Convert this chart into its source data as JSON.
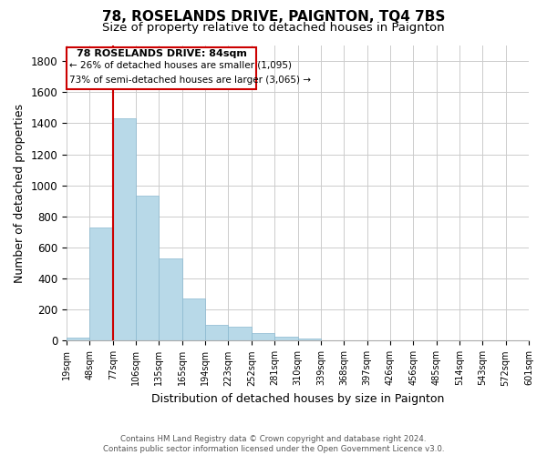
{
  "title": "78, ROSELANDS DRIVE, PAIGNTON, TQ4 7BS",
  "subtitle": "Size of property relative to detached houses in Paignton",
  "xlabel": "Distribution of detached houses by size in Paignton",
  "ylabel": "Number of detached properties",
  "bar_values": [
    20,
    730,
    1430,
    935,
    530,
    270,
    100,
    90,
    50,
    25,
    15,
    5,
    2,
    1,
    0,
    0,
    0,
    0,
    0,
    0
  ],
  "categories": [
    "19sqm",
    "48sqm",
    "77sqm",
    "106sqm",
    "135sqm",
    "165sqm",
    "194sqm",
    "223sqm",
    "252sqm",
    "281sqm",
    "310sqm",
    "339sqm",
    "368sqm",
    "397sqm",
    "426sqm",
    "456sqm",
    "485sqm",
    "514sqm",
    "543sqm",
    "572sqm",
    "601sqm"
  ],
  "bar_color": "#b8d9e8",
  "bar_edge_color": "#8ab8d0",
  "grid_color": "#cccccc",
  "marker_color": "#cc0000",
  "annotation_title": "78 ROSELANDS DRIVE: 84sqm",
  "annotation_line1": "← 26% of detached houses are smaller (1,095)",
  "annotation_line2": "73% of semi-detached houses are larger (3,065) →",
  "box_color": "#ffffff",
  "box_edge_color": "#cc0000",
  "ylim": [
    0,
    1900
  ],
  "yticks": [
    0,
    200,
    400,
    600,
    800,
    1000,
    1200,
    1400,
    1600,
    1800
  ],
  "footer_line1": "Contains HM Land Registry data © Crown copyright and database right 2024.",
  "footer_line2": "Contains public sector information licensed under the Open Government Licence v3.0.",
  "background_color": "#ffffff",
  "title_fontsize": 11,
  "subtitle_fontsize": 9.5
}
